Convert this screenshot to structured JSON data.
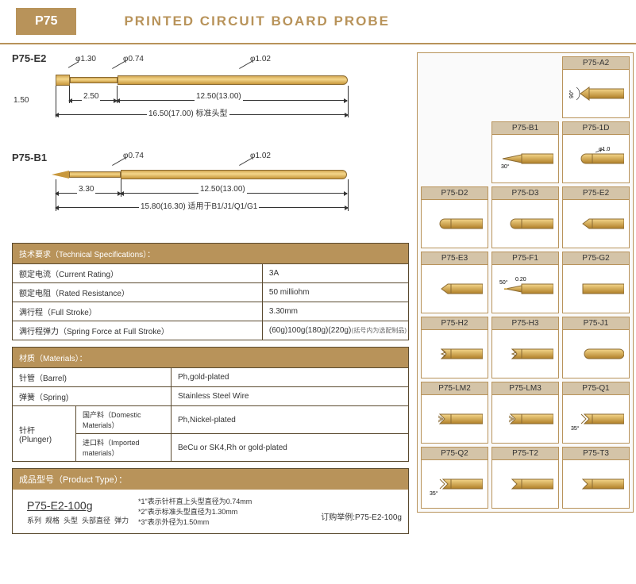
{
  "header": {
    "badge": "P75",
    "title": "PRINTED CIRCUIT BOARD  PROBE"
  },
  "diagram1": {
    "label": "P75-E2",
    "d_tip": "φ1.30",
    "d_shaft": "φ0.74",
    "d_body": "φ1.02",
    "h_tip": "1.50",
    "l_shaft": "2.50",
    "l_body": "12.50(13.00)",
    "l_total": "16.50(17.00) 标准头型"
  },
  "diagram2": {
    "label": "P75-B1",
    "d_shaft": "φ0.74",
    "d_body": "φ1.02",
    "l_shaft": "3.30",
    "l_body": "12.50(13.00)",
    "l_total": "15.80(16.30) 适用于B1/J1/Q1/G1"
  },
  "specs": {
    "header": "技术要求（Technical Specifications）：",
    "rows": [
      [
        "额定电流（Current Rating）",
        "3A"
      ],
      [
        "额定电阻（Rated Resistance）",
        "50 milliohm"
      ],
      [
        "满行程（Full Stroke）",
        "3.30mm"
      ],
      [
        "满行程弹力（Spring Force at Full Stroke）",
        "(60g)100g(180g)(220g)"
      ]
    ],
    "footnote": "(括号内为选配制品)"
  },
  "materials": {
    "header": "材质（Materials）：",
    "barrel": [
      "针管（Barrel)",
      "Ph,gold-plated"
    ],
    "spring": [
      "弹簧（Spring)",
      "Stainless Steel Wire"
    ],
    "plunger_label": "针杆 (Plunger)",
    "dom": [
      "国产料（Domestic Materials）",
      "Ph,Nickel-plated"
    ],
    "imp": [
      "进口料（Imported materials）",
      "BeCu or SK4,Rh or gold-plated"
    ]
  },
  "product": {
    "header": "成品型号（Product Type）：",
    "code": "P75-E2-100g",
    "sublabels": [
      "系列",
      "规格",
      "头型",
      "头部直径",
      "弹力"
    ],
    "notes": [
      "*1\"表示针杆直上头型直径为0.74mm",
      "*2\"表示标准头型直径为1.30mm",
      "*3\"表示外径为1.50mm"
    ],
    "order": "订购举例:P75-E2-100g"
  },
  "tips": [
    {
      "n": "",
      "t": "empty"
    },
    {
      "n": "",
      "t": "empty"
    },
    {
      "n": "P75-A2",
      "t": "a2",
      "ang": "90°"
    },
    {
      "n": "",
      "t": "empty"
    },
    {
      "n": "P75-B1",
      "t": "b1",
      "ang": "30°"
    },
    {
      "n": "P75-1D",
      "t": "1d",
      "d": "φ1.0"
    },
    {
      "n": "P75-D2",
      "t": "d2"
    },
    {
      "n": "P75-D3",
      "t": "d3"
    },
    {
      "n": "P75-E2",
      "t": "e2"
    },
    {
      "n": "P75-E3",
      "t": "e3"
    },
    {
      "n": "P75-F1",
      "t": "f1",
      "ang": "50°",
      "d": "0.20"
    },
    {
      "n": "P75-G2",
      "t": "g2"
    },
    {
      "n": "P75-H2",
      "t": "h2"
    },
    {
      "n": "P75-H3",
      "t": "h3"
    },
    {
      "n": "P75-J1",
      "t": "j1"
    },
    {
      "n": "P75-LM2",
      "t": "lm2"
    },
    {
      "n": "P75-LM3",
      "t": "lm3"
    },
    {
      "n": "P75-Q1",
      "t": "q1",
      "ang": "35°"
    },
    {
      "n": "P75-Q2",
      "t": "q2",
      "ang": "35°"
    },
    {
      "n": "P75-T2",
      "t": "t2"
    },
    {
      "n": "P75-T3",
      "t": "t3"
    }
  ],
  "colors": {
    "brass": "#c8983d",
    "brass_hi": "#f4d68a",
    "bg": "#b8935a"
  }
}
